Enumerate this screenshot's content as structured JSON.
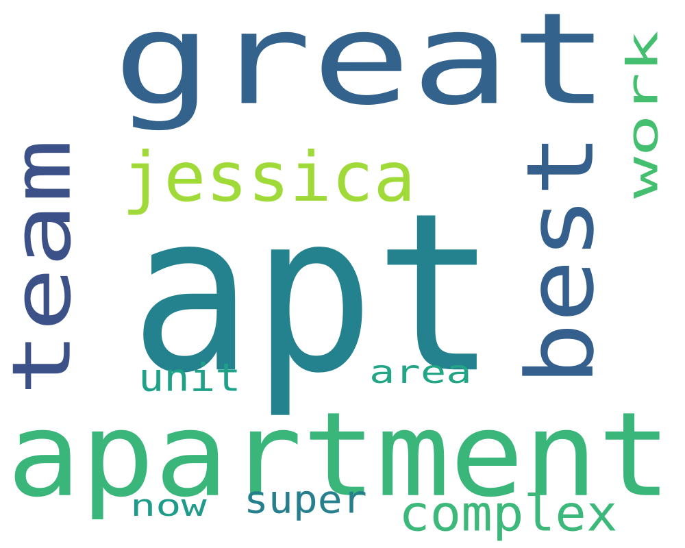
{
  "words": {
    "great": {
      "text": "great",
      "color": "#33638d"
    },
    "apt": {
      "text": "apt",
      "color": "#23828e"
    },
    "apartment": {
      "text": "apartment",
      "color": "#3bb67b"
    },
    "team": {
      "text": "team",
      "color": "#3d5189"
    },
    "best": {
      "text": "best",
      "color": "#355f8d"
    },
    "jessica": {
      "text": "jessica",
      "color": "#a0da39"
    },
    "work": {
      "text": "work",
      "color": "#44bf70"
    },
    "unit": {
      "text": "unit",
      "color": "#1fa187"
    },
    "area": {
      "text": "area",
      "color": "#21a585"
    },
    "complex": {
      "text": "complex",
      "color": "#3cb97a"
    },
    "super": {
      "text": "super",
      "color": "#277f8e"
    },
    "now": {
      "text": "now",
      "color": "#1e9b8a"
    }
  }
}
